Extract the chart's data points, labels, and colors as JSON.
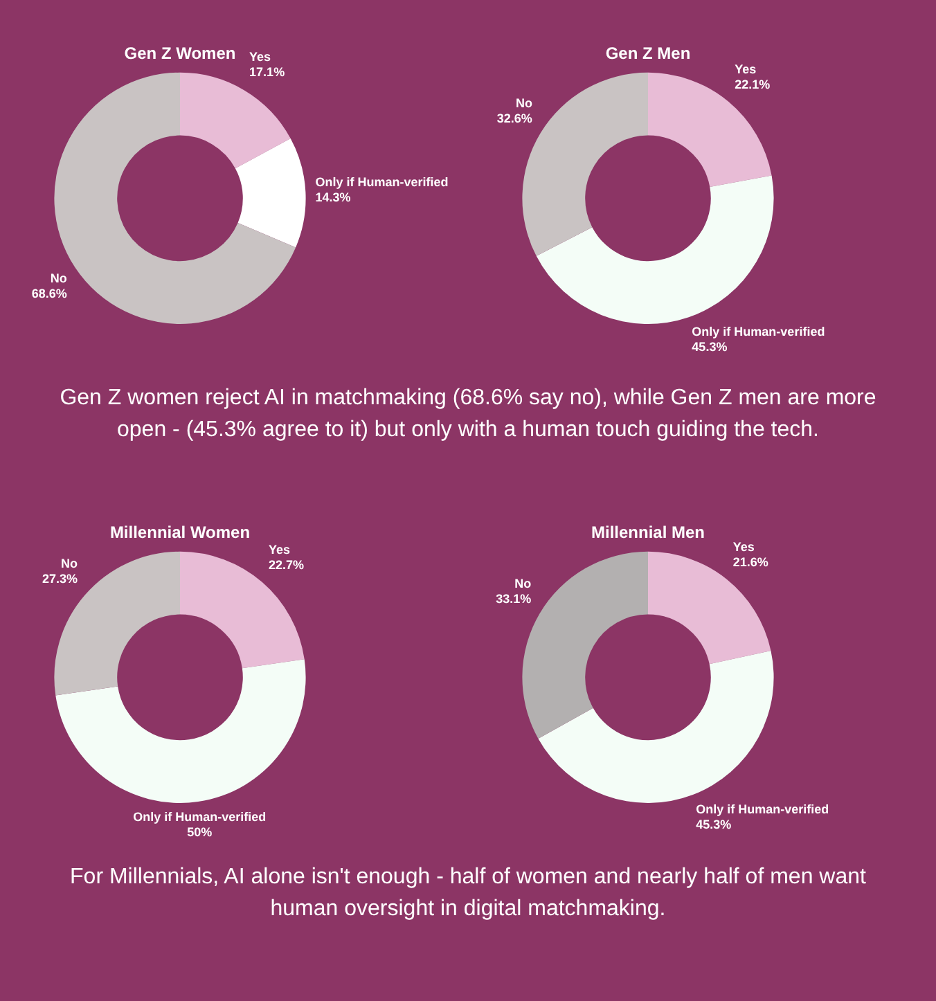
{
  "chart_data": [
    {
      "type": "donut",
      "title": "Gen Z Women",
      "categories": [
        "Yes",
        "Only if Human-verified",
        "No"
      ],
      "values": [
        17.1,
        14.3,
        68.6
      ],
      "value_labels": [
        "17.1%",
        "14.3%",
        "68.6%"
      ],
      "colors": [
        "#e8bcd6",
        "#ffffff",
        "#c9c3c3"
      ],
      "annotations": [
        "Gen Z women reject AI in matchmaking (68.6% say no), while Gen Z men are more open - (45.3% agree to it) but only with a human touch guiding the tech."
      ]
    },
    {
      "type": "donut",
      "title": "Gen Z Men",
      "categories": [
        "Yes",
        "Only if Human-verified",
        "No"
      ],
      "values": [
        22.1,
        45.3,
        32.6
      ],
      "value_labels": [
        "22.1%",
        "45.3%",
        "32.6%"
      ],
      "colors": [
        "#e8bcd6",
        "#f4fdf7",
        "#c9c3c3"
      ]
    },
    {
      "type": "donut",
      "title": "Millennial Women",
      "categories": [
        "Yes",
        "Only if Human-verified",
        "No"
      ],
      "values": [
        22.7,
        50,
        27.3
      ],
      "value_labels": [
        "22.7%",
        "50%",
        "27.3%"
      ],
      "colors": [
        "#e8bcd6",
        "#f4fdf7",
        "#c9c3c3"
      ],
      "annotations": [
        "For Millennials, AI alone isn't enough - half of women and nearly half of men want human oversight in digital matchmaking."
      ]
    },
    {
      "type": "donut",
      "title": "Millennial Men",
      "categories": [
        "Yes",
        "Only if Human-verified",
        "No"
      ],
      "values": [
        21.6,
        45.3,
        33.1
      ],
      "value_labels": [
        "21.6%",
        "45.3%",
        "33.1%"
      ],
      "colors": [
        "#e8bcd6",
        "#f4fdf7",
        "#b3b0b0"
      ]
    }
  ]
}
